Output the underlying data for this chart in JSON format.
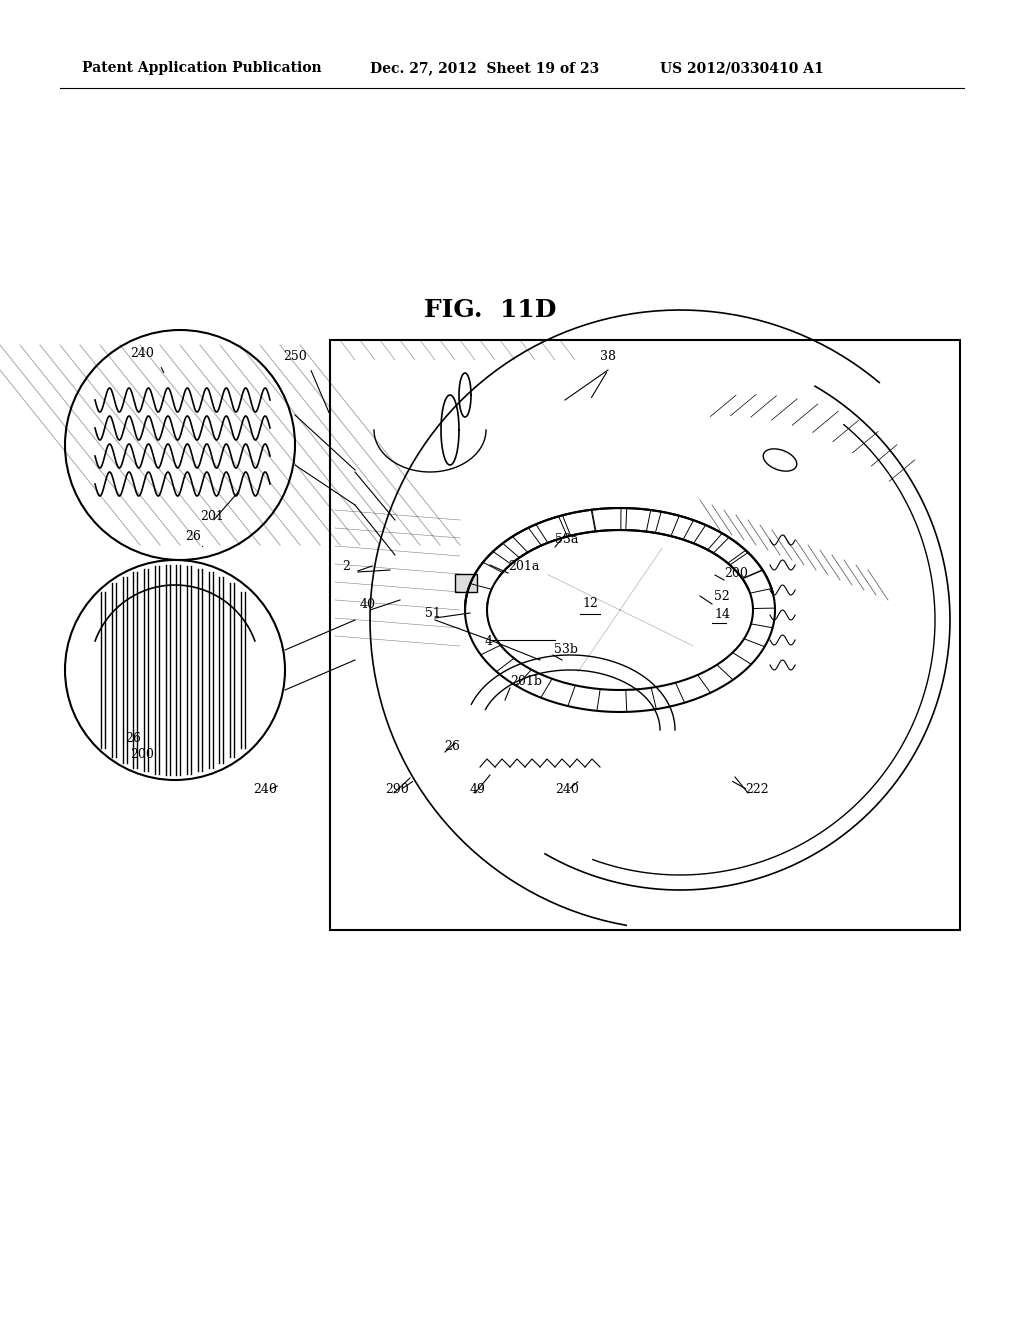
{
  "title": "FIG.  11D",
  "header_left": "Patent Application Publication",
  "header_center": "Dec. 27, 2012  Sheet 19 of 23",
  "header_right": "US 2012/0330410 A1",
  "bg_color": "#ffffff",
  "line_color": "#000000",
  "fig_title_fontsize": 18,
  "header_fontsize": 10,
  "label_fontsize": 9,
  "labels": {
    "240_top": "240",
    "250": "250",
    "38": "38",
    "201": "201",
    "26_upper": "26",
    "2": "2",
    "40": "40",
    "51": "51",
    "53a": "53a",
    "201a": "201a",
    "200": "200",
    "52": "52",
    "14": "14",
    "12": "12",
    "4": "4",
    "53b": "53b",
    "201b": "201b",
    "26_lower": "26",
    "200_bottom": "200",
    "240_bottom": "240",
    "290": "290",
    "49": "49",
    "240_main": "240",
    "222": "222",
    "26_circle2": "26"
  }
}
